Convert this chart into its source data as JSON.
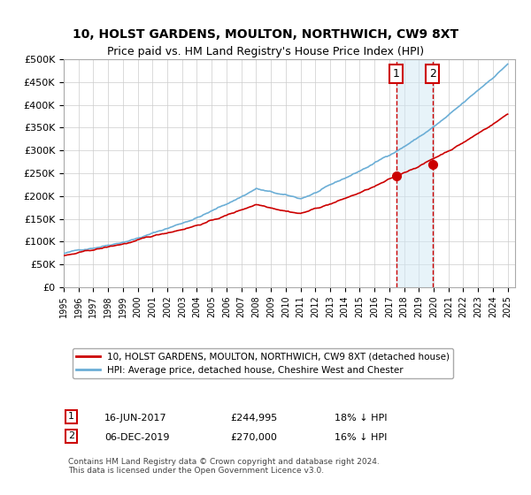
{
  "title": "10, HOLST GARDENS, MOULTON, NORTHWICH, CW9 8XT",
  "subtitle": "Price paid vs. HM Land Registry's House Price Index (HPI)",
  "legend_line1": "10, HOLST GARDENS, MOULTON, NORTHWICH, CW9 8XT (detached house)",
  "legend_line2": "HPI: Average price, detached house, Cheshire West and Chester",
  "footnote": "Contains HM Land Registry data © Crown copyright and database right 2024.\nThis data is licensed under the Open Government Licence v3.0.",
  "sale1_label": "1",
  "sale1_date": "16-JUN-2017",
  "sale1_price": "£244,995",
  "sale1_note": "18% ↓ HPI",
  "sale2_label": "2",
  "sale2_date": "06-DEC-2019",
  "sale2_price": "£270,000",
  "sale2_note": "16% ↓ HPI",
  "sale1_year": 2017.46,
  "sale1_value": 244995,
  "sale2_year": 2019.92,
  "sale2_value": 270000,
  "hpi_color": "#6baed6",
  "price_color": "#cc0000",
  "marker_color": "#cc0000",
  "vline_color": "#cc0000",
  "shade_color": "#d0e8f5",
  "ylim_min": 0,
  "ylim_max": 500000,
  "xlim_min": 1995,
  "xlim_max": 2025.5
}
